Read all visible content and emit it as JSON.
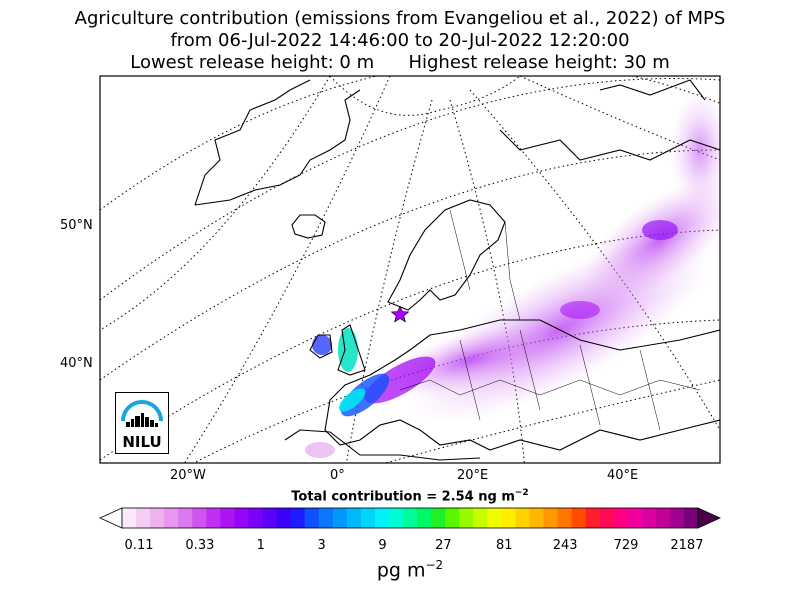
{
  "title": {
    "line1": "Agriculture contribution (emissions from Evangeliou et al., 2022) of MPS",
    "line2": "from 06-Jul-2022 14:46:00 to 20-Jul-2022 12:20:00",
    "line3": "Lowest release height: 0 m      Highest release height: 30 m"
  },
  "map": {
    "lat_labels": [
      "50°N",
      "40°N"
    ],
    "lon_labels": [
      "20°W",
      "0°",
      "20°E",
      "40°E"
    ],
    "grid": "dotted",
    "receptor_marker": "star-icon",
    "colors": {
      "land_outline": "#000000",
      "receptor": "#aa00ff"
    }
  },
  "total_contribution": {
    "label": "Total contribution = 2.54 ng m",
    "unit_exp": "−2"
  },
  "colorbar": {
    "ticks": [
      "0.11",
      "0.33",
      "1",
      "3",
      "9",
      "27",
      "81",
      "243",
      "729",
      "2187"
    ],
    "unit_base": "pg m",
    "unit_exp": "−2",
    "colors": [
      "#fbe8fb",
      "#f5cdf5",
      "#eeb2ee",
      "#e797ef",
      "#dc79ef",
      "#cf55f0",
      "#c030f2",
      "#ad14f3",
      "#9605f5",
      "#7a00f7",
      "#5c00f8",
      "#3a00fa",
      "#1f1cfc",
      "#1050fc",
      "#0a78fc",
      "#0598fb",
      "#00b8fb",
      "#00d6fa",
      "#00f2f8",
      "#00fdd0",
      "#00fc9a",
      "#00f964",
      "#1ff02a",
      "#58f600",
      "#98fa00",
      "#c8fd00",
      "#eefe00",
      "#ffee00",
      "#ffd300",
      "#ffb800",
      "#ff9800",
      "#ff7600",
      "#ff4c00",
      "#ff1f2a",
      "#ff0a55",
      "#ff0080",
      "#f2009d",
      "#dc00a0",
      "#c20098",
      "#a10090",
      "#7a007a"
    ],
    "extend_min": "#ffffff",
    "extend_max": "#4b0048"
  },
  "logo": {
    "text": "NILU",
    "colors": {
      "arc": "#1aa5e0",
      "skyline": "#000000"
    }
  }
}
